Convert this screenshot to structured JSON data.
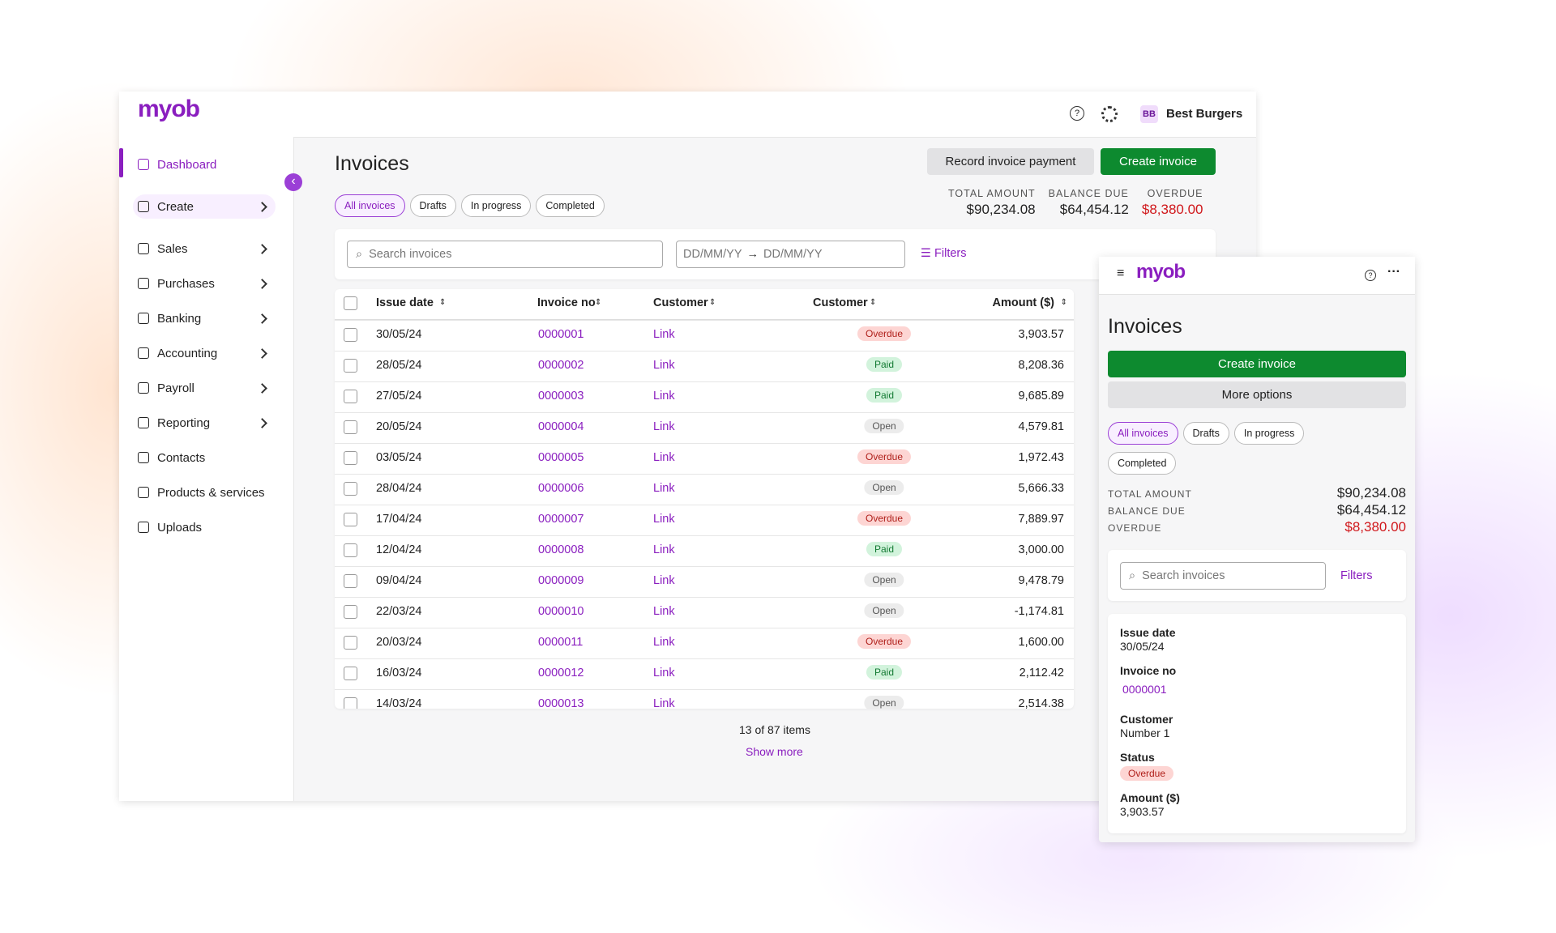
{
  "app": {
    "logo": "myob",
    "user_initials": "BB",
    "user_name": "Best Burgers"
  },
  "sidebar": {
    "nav": [
      "Dashboard",
      "Create",
      "Sales",
      "Purchases",
      "Banking",
      "Accounting",
      "Payroll",
      "Reporting",
      "Contacts",
      "Products & services",
      "Uploads"
    ]
  },
  "page": {
    "title": "Invoices",
    "buttons": [
      "Record invoice payment",
      "Create invoice"
    ],
    "tabs": [
      "All invoices",
      "Drafts",
      "In progress",
      "Completed"
    ],
    "summary": [
      {
        "label": "TOTAL AMOUNT",
        "value": "$90,234.08"
      },
      {
        "label": "BALANCE DUE",
        "value": "$64,454.12"
      },
      {
        "label": "OVERDUE",
        "value": "$8,380.00"
      }
    ],
    "search_placeholder": "Search invoices",
    "date_from": "DD/MM/YY",
    "date_to": "DD/MM/YY",
    "filters": "Filters"
  },
  "table": {
    "columns": [
      "Issue date",
      "Invoice no",
      "Customer",
      "Customer",
      "Amount ($)"
    ],
    "rows": [
      [
        "30/05/24",
        "0000001",
        "Link",
        "Overdue",
        "3,903.57"
      ],
      [
        "28/05/24",
        "0000002",
        "Link",
        "Paid",
        "8,208.36"
      ],
      [
        "27/05/24",
        "0000003",
        "Link",
        "Paid",
        "9,685.89"
      ],
      [
        "20/05/24",
        "0000004",
        "Link",
        "Open",
        "4,579.81"
      ],
      [
        "03/05/24",
        "0000005",
        "Link",
        "Overdue",
        "1,972.43"
      ],
      [
        "28/04/24",
        "0000006",
        "Link",
        "Open",
        "5,666.33"
      ],
      [
        "17/04/24",
        "0000007",
        "Link",
        "Overdue",
        "7,889.97"
      ],
      [
        "12/04/24",
        "0000008",
        "Link",
        "Paid",
        "3,000.00"
      ],
      [
        "09/04/24",
        "0000009",
        "Link",
        "Open",
        "9,478.79"
      ],
      [
        "22/03/24",
        "0000010",
        "Link",
        "Open",
        "-1,174.81"
      ],
      [
        "20/03/24",
        "0000011",
        "Link",
        "Overdue",
        "1,600.00"
      ],
      [
        "16/03/24",
        "0000012",
        "Link",
        "Paid",
        "2,112.42"
      ],
      [
        "14/03/24",
        "0000013",
        "Link",
        "Open",
        "2,514.38"
      ]
    ],
    "footer": "13 of 87 items",
    "show_more": "Show more"
  },
  "mobile": {
    "title": "Invoices",
    "buttons": [
      "Create invoice",
      "More options"
    ],
    "card": [
      {
        "label": "Issue date",
        "value": "30/05/24"
      },
      {
        "label": "Invoice no",
        "value": "0000001"
      },
      {
        "label": "Customer",
        "value": "Number 1"
      },
      {
        "label": "Status",
        "value": "Overdue"
      },
      {
        "label": "Amount ($)",
        "value": "3,903.57"
      }
    ]
  }
}
